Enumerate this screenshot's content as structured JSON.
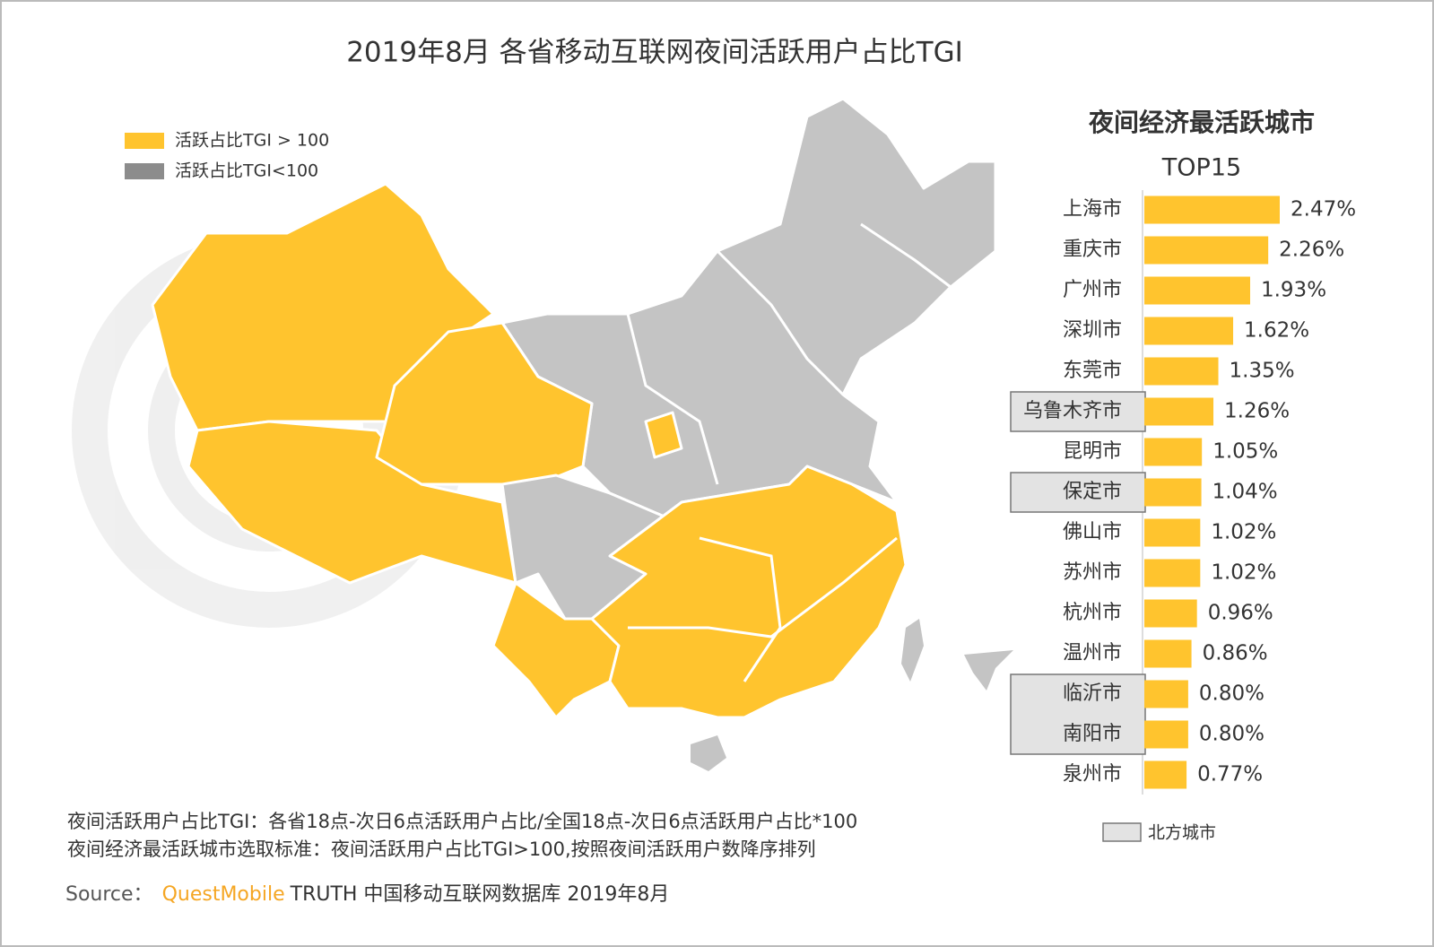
{
  "title": "2019年8月 各省移动互联网夜间活跃用户占比TGI",
  "map_legend": [
    {
      "label": "活跃占比TGI > 100",
      "color": "#ffc42e"
    },
    {
      "label": "活跃占比TGI<100",
      "color": "#8c8c8c"
    }
  ],
  "chart_data": {
    "type": "bar",
    "orientation": "horizontal",
    "title": "夜间经济最活跃城市",
    "subtitle": "TOP15",
    "categories": [
      "上海市",
      "重庆市",
      "广州市",
      "深圳市",
      "东莞市",
      "乌鲁木齐市",
      "昆明市",
      "保定市",
      "佛山市",
      "苏州市",
      "杭州市",
      "温州市",
      "临沂市",
      "南阳市",
      "泉州市"
    ],
    "values": [
      2.47,
      2.26,
      1.93,
      1.62,
      1.35,
      1.26,
      1.05,
      1.04,
      1.02,
      1.02,
      0.96,
      0.86,
      0.8,
      0.8,
      0.77
    ],
    "value_labels": [
      "2.47%",
      "2.26%",
      "1.93%",
      "1.62%",
      "1.35%",
      "1.26%",
      "1.05%",
      "1.04%",
      "1.02%",
      "1.02%",
      "0.96%",
      "0.86%",
      "0.80%",
      "0.80%",
      "0.77%"
    ],
    "color": "#ffc42e",
    "highlight": {
      "label": "北方城市",
      "color": "#e3e3e3",
      "flags": [
        false,
        false,
        false,
        false,
        false,
        true,
        false,
        true,
        false,
        false,
        false,
        false,
        true,
        true,
        false
      ]
    }
  },
  "notes": [
    "夜间活跃用户占比TGI：各省18点-次日6点活跃用户占比/全国18点-次日6点活跃用户占比*100",
    "夜间经济最活跃城市选取标准：夜间活跃用户占比TGI>100,按照夜间活跃用户数降序排列"
  ],
  "source": {
    "prefix": "Source：",
    "brand": "QuestMobile",
    "rest": "TRUTH 中国移动互联网数据库 2019年8月"
  }
}
